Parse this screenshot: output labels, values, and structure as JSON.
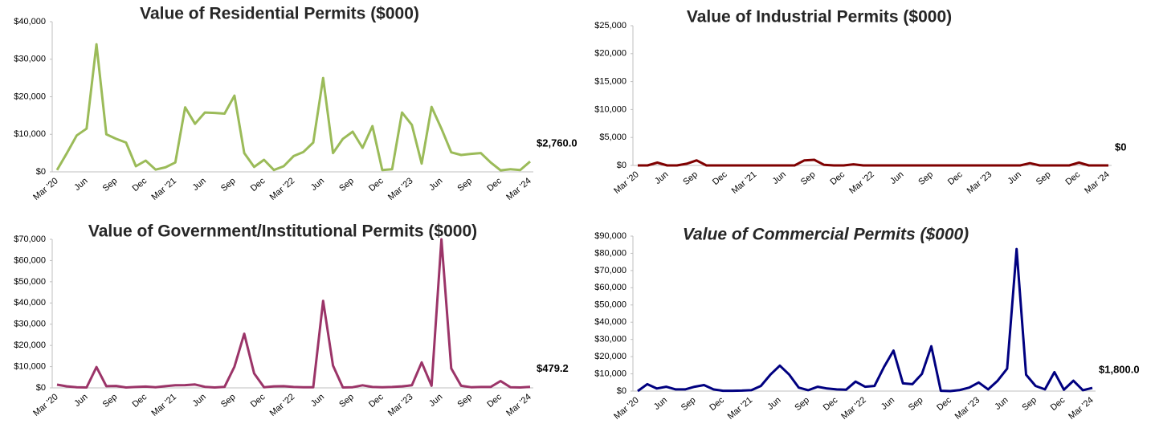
{
  "chart_data": [
    {
      "type": "line",
      "title": "Value of Residential Permits ($000)",
      "color": "#9bbb59",
      "categories": [
        "Mar '20",
        null,
        null,
        "Jun",
        null,
        null,
        "Sep",
        null,
        null,
        "Dec",
        null,
        null,
        "Mar '21",
        null,
        null,
        "Jun",
        null,
        null,
        "Sep",
        null,
        null,
        "Dec",
        null,
        null,
        "Mar '22",
        null,
        null,
        "Jun",
        null,
        null,
        "Sep",
        null,
        null,
        "Dec",
        null,
        null,
        "Mar '23",
        null,
        null,
        "Jun",
        null,
        null,
        "Sep",
        null,
        null,
        "Dec",
        null,
        null,
        "Mar '24"
      ],
      "values": [
        500,
        5000,
        9700,
        11500,
        34000,
        10000,
        8800,
        7800,
        1500,
        3000,
        600,
        1200,
        2500,
        17200,
        12800,
        15800,
        15700,
        15500,
        20300,
        5000,
        1300,
        3200,
        500,
        1500,
        4200,
        5300,
        7800,
        25000,
        5000,
        8800,
        10700,
        6400,
        12200,
        500,
        700,
        15800,
        12500,
        2200,
        17300,
        11500,
        5200,
        4500,
        4800,
        5000,
        2500,
        400,
        700,
        500,
        2760
      ],
      "value_labels": [
        null,
        null,
        null,
        null,
        null,
        null,
        null,
        null,
        null,
        null,
        null,
        null,
        null,
        null,
        null,
        null,
        null,
        null,
        null,
        null,
        null,
        null,
        null,
        null,
        null,
        null,
        null,
        null,
        null,
        null,
        null,
        null,
        null,
        null,
        null,
        null,
        null,
        null,
        null,
        null,
        null,
        null,
        null,
        null,
        null,
        null,
        null,
        null,
        "$2,760.0"
      ],
      "ylim": [
        0,
        40000
      ],
      "yticks": [
        {
          "value": 0,
          "label": "$0"
        },
        {
          "value": 10000,
          "label": "$10,000"
        },
        {
          "value": 20000,
          "label": "$20,000"
        },
        {
          "value": 30000,
          "label": "$30,000"
        },
        {
          "value": 40000,
          "label": "$40,000"
        }
      ]
    },
    {
      "type": "line",
      "title": "Value of Industrial Permits ($000)",
      "color": "#7f0000",
      "categories": [
        "Mar '20",
        null,
        null,
        "Jun",
        null,
        null,
        "Sep",
        null,
        null,
        "Dec",
        null,
        null,
        "Mar '21",
        null,
        null,
        "Jun",
        null,
        null,
        "Sep",
        null,
        null,
        "Dec",
        null,
        null,
        "Mar '22",
        null,
        null,
        "Jun",
        null,
        null,
        "Sep",
        null,
        null,
        "Dec",
        null,
        null,
        "Mar '23",
        null,
        null,
        "Jun",
        null,
        null,
        "Sep",
        null,
        null,
        "Dec",
        null,
        null,
        "Mar '24"
      ],
      "values": [
        0,
        0,
        500,
        0,
        0,
        300,
        900,
        0,
        0,
        0,
        0,
        0,
        0,
        0,
        0,
        0,
        0,
        900,
        1000,
        100,
        0,
        0,
        200,
        0,
        0,
        0,
        0,
        0,
        0,
        0,
        0,
        0,
        0,
        0,
        0,
        0,
        0,
        0,
        0,
        0,
        400,
        0,
        0,
        0,
        0,
        500,
        0,
        0,
        0
      ],
      "value_labels": [
        null,
        null,
        null,
        null,
        null,
        null,
        null,
        null,
        null,
        null,
        null,
        null,
        null,
        null,
        null,
        null,
        null,
        null,
        null,
        null,
        null,
        null,
        null,
        null,
        null,
        null,
        null,
        null,
        null,
        null,
        null,
        null,
        null,
        null,
        null,
        null,
        null,
        null,
        null,
        null,
        null,
        null,
        null,
        null,
        null,
        null,
        null,
        null,
        "$0"
      ],
      "ylim": [
        0,
        25000
      ],
      "yticks": [
        {
          "value": 0,
          "label": "$0"
        },
        {
          "value": 5000,
          "label": "$5,000"
        },
        {
          "value": 10000,
          "label": "$10,000"
        },
        {
          "value": 15000,
          "label": "$15,000"
        },
        {
          "value": 20000,
          "label": "$20,000"
        },
        {
          "value": 25000,
          "label": "$25,000"
        }
      ]
    },
    {
      "type": "line",
      "title": "Value of Government/Institutional Permits ($000)",
      "color": "#9b3468",
      "categories": [
        "Mar '20",
        null,
        null,
        "Jun",
        null,
        null,
        "Sep",
        null,
        null,
        "Dec",
        null,
        null,
        "Mar '21",
        null,
        null,
        "Jun",
        null,
        null,
        "Sep",
        null,
        null,
        "Dec",
        null,
        null,
        "Mar '22",
        null,
        null,
        "Jun",
        null,
        null,
        "Sep",
        null,
        null,
        "Dec",
        null,
        null,
        "Mar '23",
        null,
        null,
        "Jun",
        null,
        null,
        "Sep",
        null,
        null,
        "Dec",
        null,
        null,
        "Mar '24"
      ],
      "values": [
        1500,
        700,
        300,
        200,
        9800,
        800,
        900,
        200,
        400,
        600,
        300,
        800,
        1200,
        1300,
        1600,
        500,
        200,
        500,
        10000,
        25500,
        6800,
        300,
        700,
        800,
        400,
        300,
        300,
        41000,
        10500,
        200,
        300,
        1200,
        400,
        300,
        400,
        700,
        1200,
        12000,
        1000,
        70000,
        9200,
        1000,
        300,
        400,
        400,
        3200,
        300,
        200,
        479.2
      ],
      "value_labels": [
        null,
        null,
        null,
        null,
        null,
        null,
        null,
        null,
        null,
        null,
        null,
        null,
        null,
        null,
        null,
        null,
        null,
        null,
        null,
        null,
        null,
        null,
        null,
        null,
        null,
        null,
        null,
        null,
        null,
        null,
        null,
        null,
        null,
        null,
        null,
        null,
        null,
        null,
        null,
        null,
        null,
        null,
        null,
        null,
        null,
        null,
        null,
        null,
        "$479.2"
      ],
      "ylim": [
        0,
        70000
      ],
      "yticks": [
        {
          "value": 0,
          "label": "$0"
        },
        {
          "value": 10000,
          "label": "$10,000"
        },
        {
          "value": 20000,
          "label": "$20,000"
        },
        {
          "value": 30000,
          "label": "$30,000"
        },
        {
          "value": 40000,
          "label": "$40,000"
        },
        {
          "value": 50000,
          "label": "$50,000"
        },
        {
          "value": 60000,
          "label": "$60,000"
        },
        {
          "value": 70000,
          "label": "$70,000"
        }
      ]
    },
    {
      "type": "line",
      "title": "Value of Commercial Permits ($000)",
      "color": "#000080",
      "categories": [
        "Mar '20",
        null,
        null,
        "Jun",
        null,
        null,
        "Sep",
        null,
        null,
        "Dec",
        null,
        null,
        "Mar '21",
        null,
        null,
        "Jun",
        null,
        null,
        "Sep",
        null,
        null,
        "Dec",
        null,
        null,
        "Mar '22",
        null,
        null,
        "Jun",
        null,
        null,
        "Sep",
        null,
        null,
        "Dec",
        null,
        null,
        "Mar '23",
        null,
        null,
        "Jun",
        null,
        null,
        "Sep",
        null,
        null,
        "Dec",
        null,
        null,
        "Mar '24"
      ],
      "values": [
        0,
        4000,
        1500,
        2500,
        1000,
        1000,
        2500,
        3500,
        1000,
        200,
        200,
        300,
        500,
        3000,
        9500,
        14800,
        9500,
        2000,
        500,
        2500,
        1500,
        1000,
        800,
        5500,
        2500,
        3000,
        14000,
        23500,
        4500,
        4000,
        10000,
        26000,
        200,
        0,
        600,
        2000,
        5000,
        1000,
        6000,
        13000,
        82500,
        9500,
        3000,
        1000,
        11000,
        800,
        6000,
        500,
        1800
      ],
      "value_labels": [
        null,
        null,
        null,
        null,
        null,
        null,
        null,
        null,
        null,
        null,
        null,
        null,
        null,
        null,
        null,
        null,
        null,
        null,
        null,
        null,
        null,
        null,
        null,
        null,
        null,
        null,
        null,
        null,
        null,
        null,
        null,
        null,
        null,
        null,
        null,
        null,
        null,
        null,
        null,
        null,
        null,
        null,
        null,
        null,
        null,
        null,
        null,
        null,
        "$1,800.0"
      ],
      "ylim": [
        0,
        90000
      ],
      "yticks": [
        {
          "value": 0,
          "label": "$0"
        },
        {
          "value": 10000,
          "label": "$10,000"
        },
        {
          "value": 20000,
          "label": "$20,000"
        },
        {
          "value": 30000,
          "label": "$30,000"
        },
        {
          "value": 40000,
          "label": "$40,000"
        },
        {
          "value": 50000,
          "label": "$50,000"
        },
        {
          "value": 60000,
          "label": "$60,000"
        },
        {
          "value": 70000,
          "label": "$70,000"
        },
        {
          "value": 80000,
          "label": "$80,000"
        },
        {
          "value": 90000,
          "label": "$90,000"
        }
      ]
    }
  ]
}
